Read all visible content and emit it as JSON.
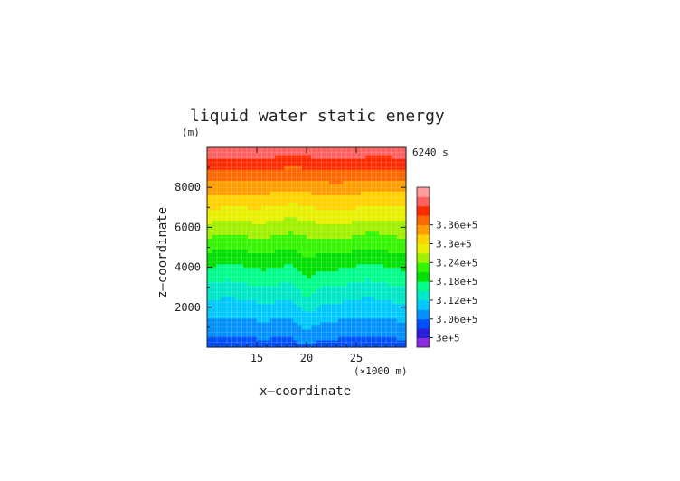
{
  "chart_data": {
    "type": "heatmap",
    "title": "liquid water static energy",
    "xlabel": "x—coordinate",
    "ylabel": "z—coordinate",
    "x_unit": "(×1000 m)",
    "y_unit": "(m)",
    "time_label": "6240 s",
    "xlim": [
      10,
      30
    ],
    "ylim": [
      0,
      10000
    ],
    "x_ticks": [
      15,
      20,
      25
    ],
    "y_ticks": [
      2000,
      4000,
      6000,
      8000
    ],
    "grid": true,
    "colorbar": {
      "levels": [
        296000,
        299000,
        302000,
        305000,
        308000,
        311000,
        314000,
        317000,
        320000,
        323000,
        326000,
        329000,
        332000,
        335000,
        338000,
        341000
      ],
      "colors": [
        "#8a2be2",
        "#2a1fd8",
        "#0050ff",
        "#0090ff",
        "#00c8ff",
        "#00e8c8",
        "#00ff8a",
        "#00e000",
        "#33f500",
        "#a0f000",
        "#e8f000",
        "#ffd200",
        "#ff9c00",
        "#ff6800",
        "#ff2a00",
        "#ff6060",
        "#ff9c9c"
      ],
      "tick_labels": [
        "3e+5",
        "3.06e+5",
        "3.12e+5",
        "3.18e+5",
        "3.24e+5",
        "3.3e+5",
        "3.36e+5"
      ]
    },
    "vertical_profile_z": [
      0,
      500,
      1000,
      1500,
      2000,
      2500,
      3000,
      3500,
      4000,
      4500,
      5000,
      5500,
      6000,
      6500,
      7000,
      7500,
      8000,
      8500,
      9000,
      9500,
      10000
    ],
    "vertical_profile_value": [
      300500,
      302000,
      303600,
      305200,
      306800,
      308500,
      310200,
      312000,
      313800,
      315700,
      317600,
      319600,
      321600,
      323700,
      325800,
      328000,
      330300,
      332700,
      335200,
      337800,
      340500
    ]
  }
}
